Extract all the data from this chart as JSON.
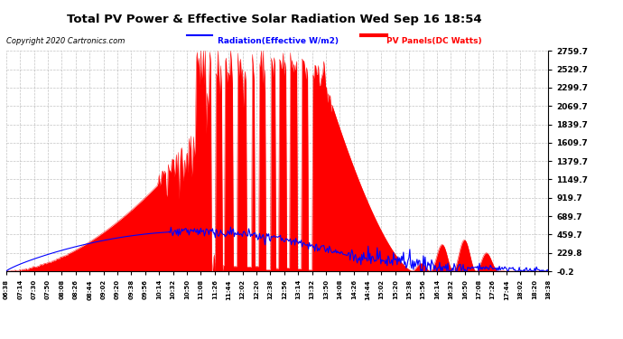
{
  "title": "Total PV Power & Effective Solar Radiation Wed Sep 16 18:54",
  "copyright": "Copyright 2020 Cartronics.com",
  "legend_radiation": "Radiation(Effective W/m2)",
  "legend_pv": "PV Panels(DC Watts)",
  "ylabel_right_values": [
    2759.7,
    2529.7,
    2299.7,
    2069.7,
    1839.7,
    1609.7,
    1379.7,
    1149.7,
    919.7,
    689.7,
    459.7,
    229.8,
    -0.2
  ],
  "ymin": -0.2,
  "ymax": 2759.7,
  "background_color": "#ffffff",
  "plot_bg_color": "#ffffff",
  "grid_color": "#aaaaaa",
  "pv_fill_color": "#ff0000",
  "pv_line_color": "#ff0000",
  "radiation_line_color": "#0000ff",
  "title_color": "#000000",
  "copyright_color": "#000000",
  "radiation_scale": 1.1,
  "x_tick_labels": [
    "06:38",
    "07:14",
    "07:30",
    "07:50",
    "08:08",
    "08:26",
    "08:44",
    "09:02",
    "09:20",
    "09:38",
    "09:56",
    "10:14",
    "10:32",
    "10:50",
    "11:08",
    "11:26",
    "11:44",
    "12:02",
    "12:20",
    "12:38",
    "12:56",
    "13:14",
    "13:32",
    "13:50",
    "14:08",
    "14:26",
    "14:44",
    "15:02",
    "15:20",
    "15:38",
    "15:56",
    "16:14",
    "16:32",
    "16:50",
    "17:08",
    "17:26",
    "17:44",
    "18:02",
    "18:20",
    "18:38"
  ]
}
